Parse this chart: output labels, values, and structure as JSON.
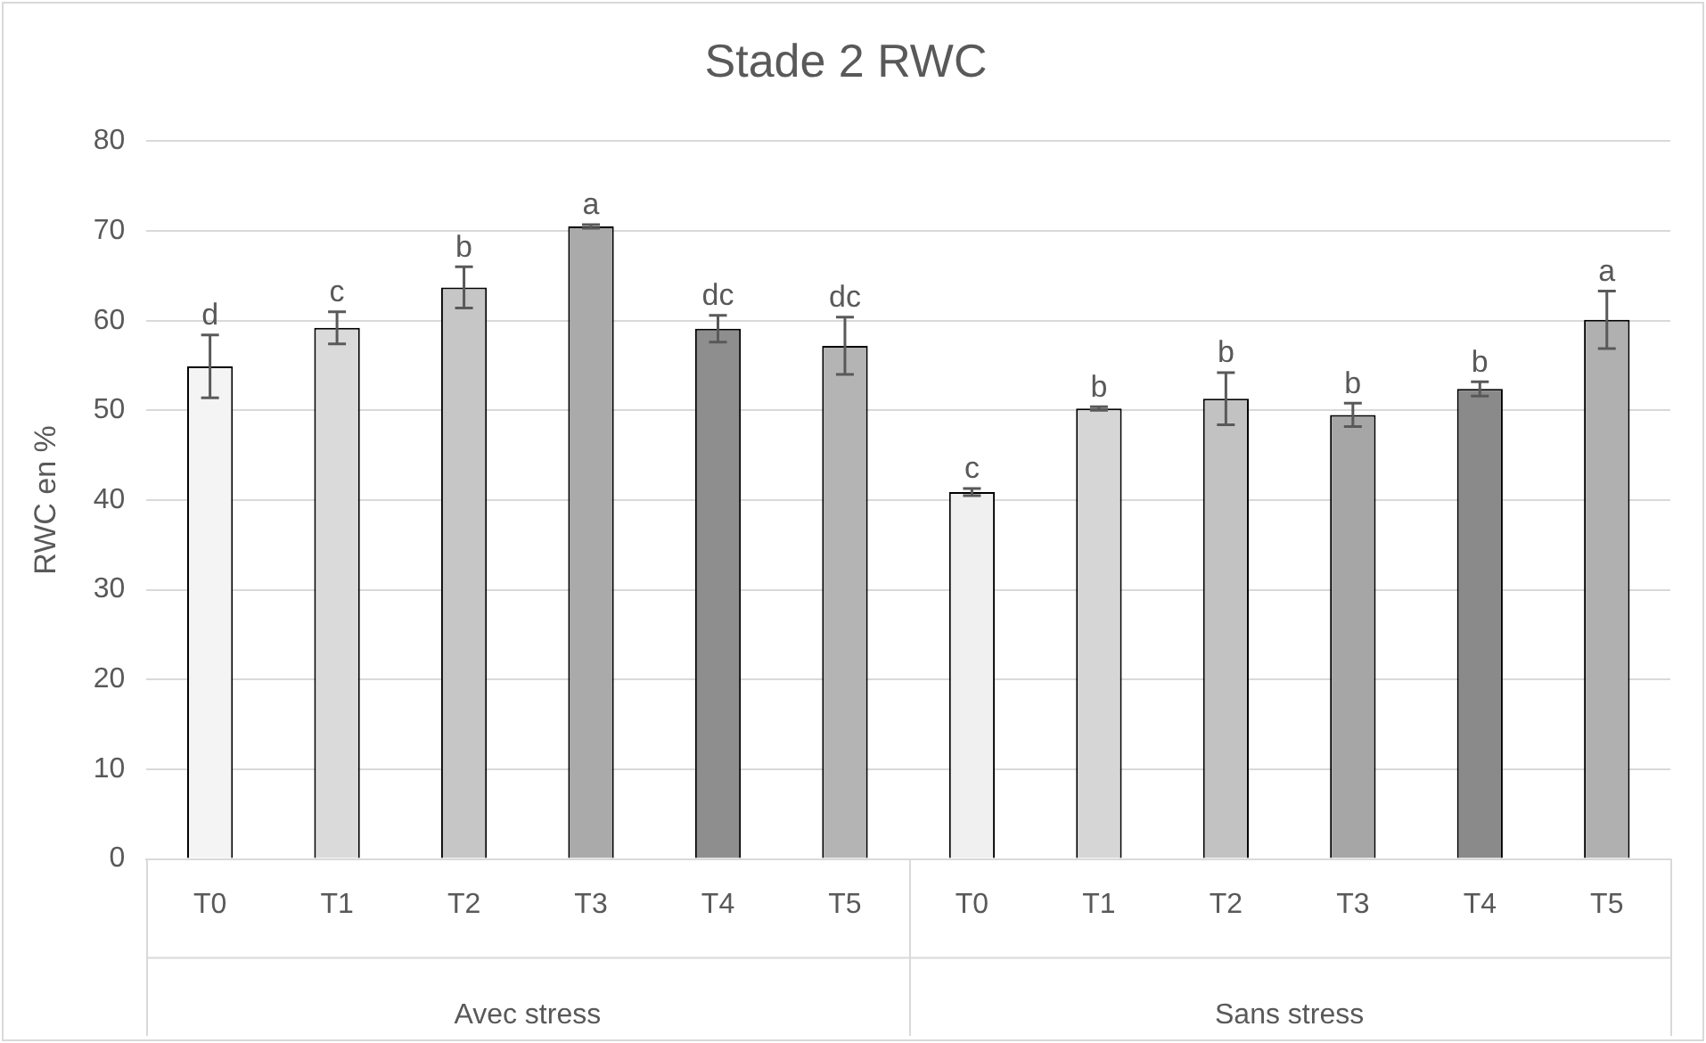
{
  "chart_data": {
    "type": "bar",
    "title": "Stade 2 RWC",
    "ylabel": "RWC en %",
    "categories": [
      "T0",
      "T1",
      "T2",
      "T3",
      "T4",
      "T5",
      "T0",
      "T1",
      "T2",
      "T3",
      "T4",
      "T5"
    ],
    "values": [
      54.9,
      59.2,
      63.7,
      70.5,
      59.1,
      57.2,
      40.9,
      50.2,
      51.3,
      49.5,
      52.4,
      60.1
    ],
    "errors": [
      3.5,
      1.8,
      2.3,
      0.2,
      1.5,
      3.2,
      0.4,
      0.2,
      2.9,
      1.3,
      0.8,
      3.2
    ],
    "value_labels": [
      "d",
      "c",
      "b",
      "a",
      "dc",
      "dc",
      "c",
      "b",
      "b",
      "b",
      "b",
      "a"
    ],
    "colors": [
      "#f4f4f4",
      "#dadada",
      "#c6c6c6",
      "#aaaaaa",
      "#8e8e8e",
      "#b4b4b4",
      "#f0f0f0",
      "#d6d6d6",
      "#c2c2c2",
      "#a6a6a6",
      "#8a8a8a",
      "#b0b0b0"
    ],
    "annotations": [
      "Avec stress",
      "Sans stress"
    ],
    "ylim": [
      0,
      80
    ],
    "yticks": [
      0,
      10,
      20,
      30,
      40,
      50,
      60,
      70,
      80
    ],
    "grid": "y",
    "legend": false
  }
}
